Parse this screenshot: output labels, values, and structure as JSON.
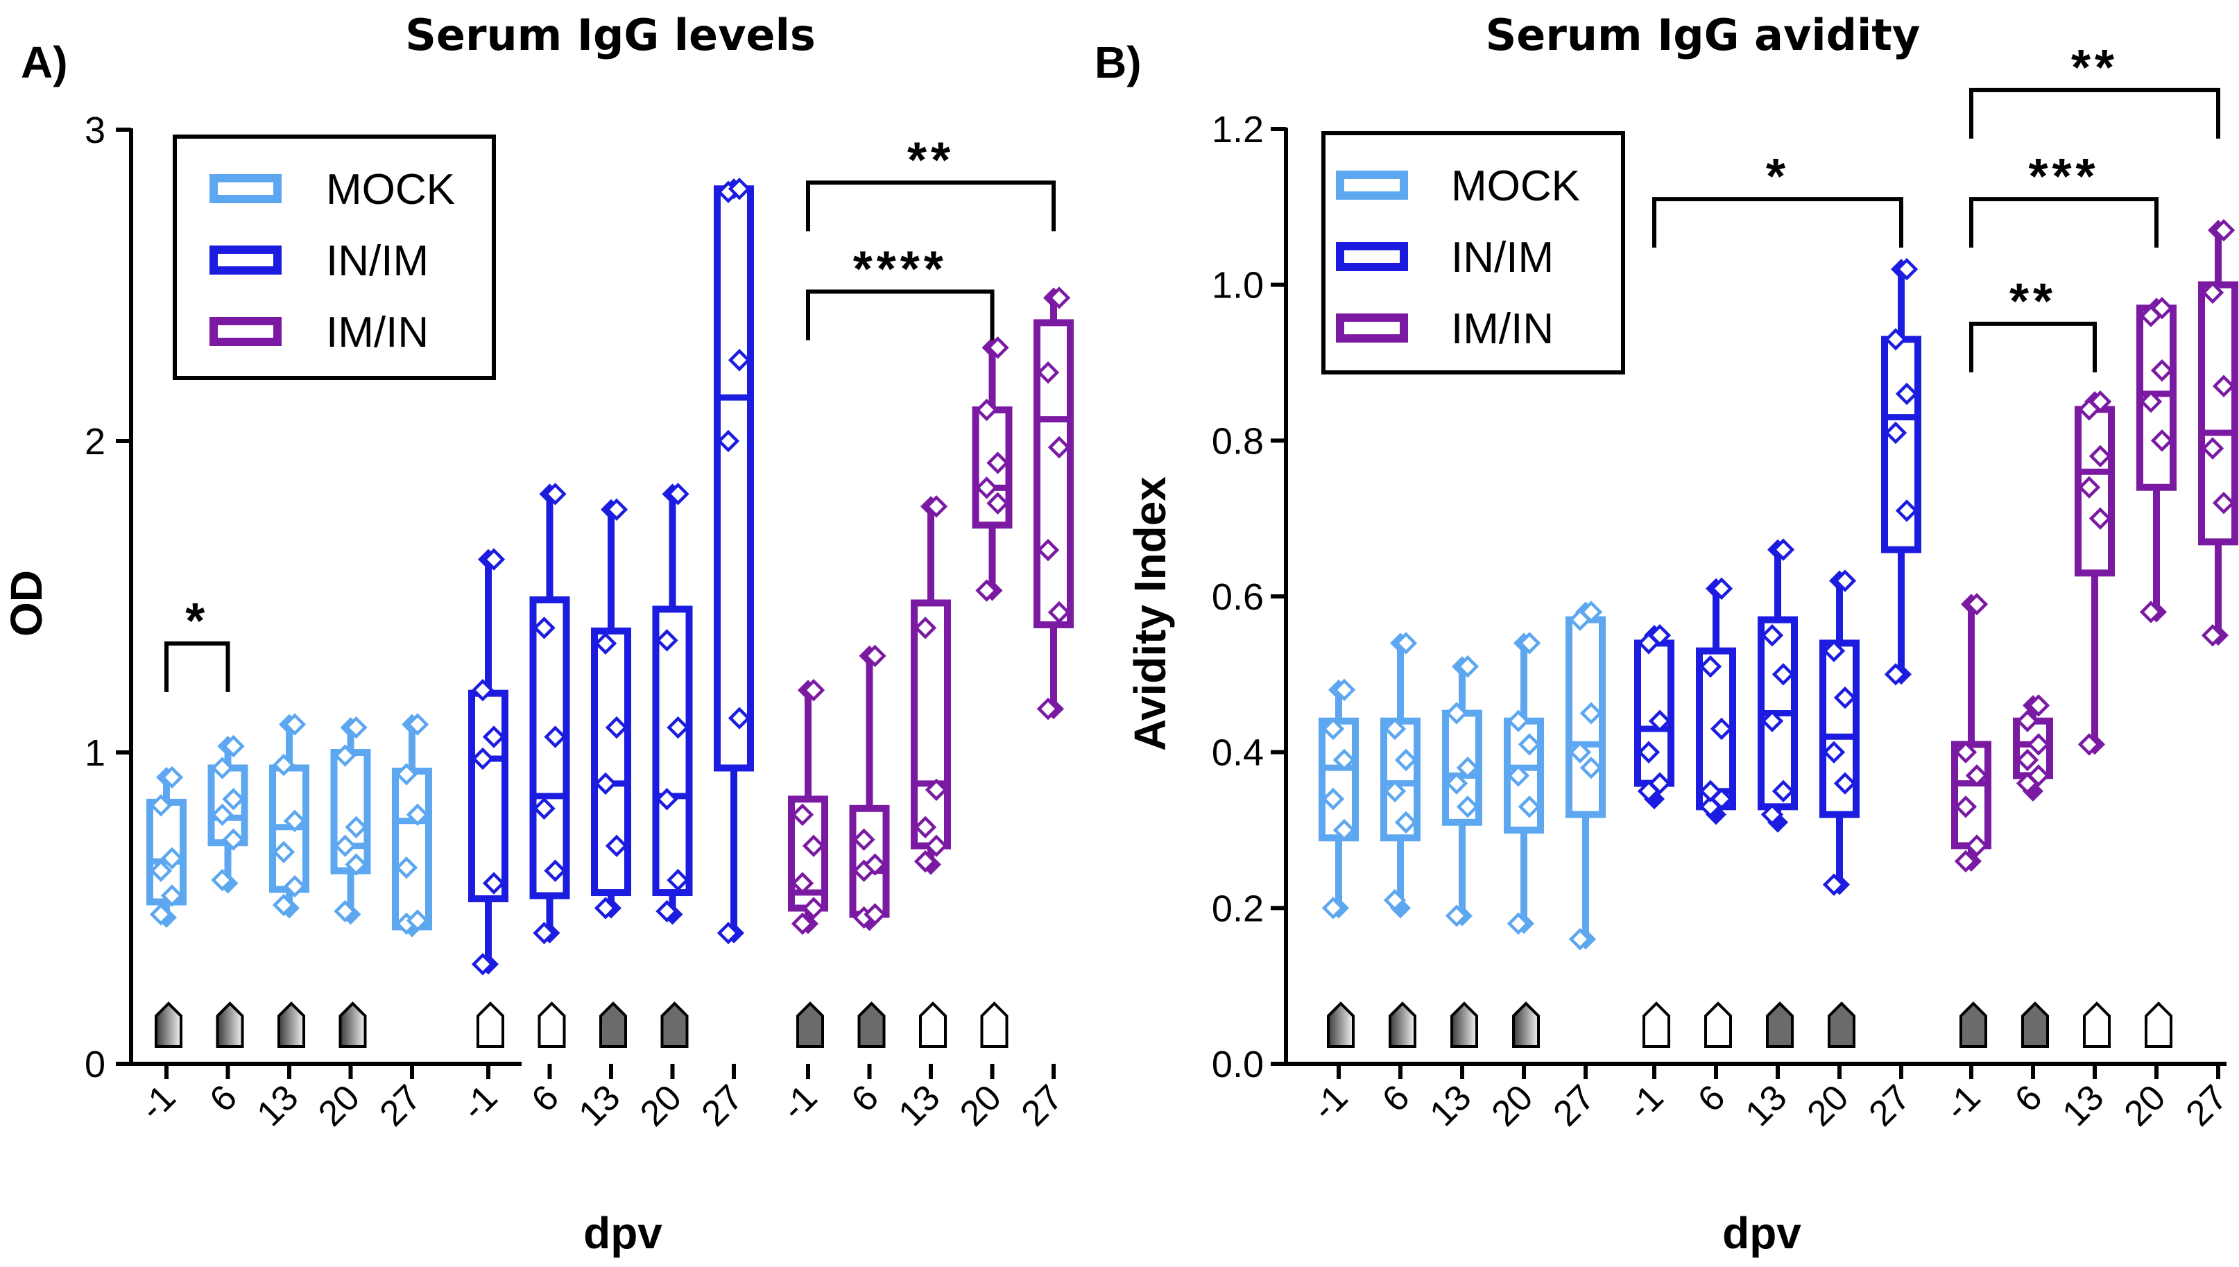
{
  "colors": {
    "MOCK": "#5ca7f0",
    "IN/IM": "#1b1ce0",
    "IM/IN": "#7a1aa3"
  },
  "chart_data": [
    {
      "type": "box",
      "panel_label": "A)",
      "title": "Serum IgG levels",
      "ylabel": "OD",
      "xlabel": "dpv",
      "ylim": [
        0,
        3
      ],
      "yticks": [
        "0",
        "1",
        "2",
        "3"
      ],
      "x": [
        "-1",
        "6",
        "13",
        "20",
        "27"
      ],
      "legend": [
        "MOCK",
        "IN/IM",
        "IM/IN"
      ],
      "series": [
        {
          "name": "MOCK",
          "boxes": [
            {
              "min": 0.47,
              "q1": 0.52,
              "median": 0.65,
              "q3": 0.84,
              "max": 0.92,
              "points": [
                0.48,
                0.54,
                0.62,
                0.66,
                0.83,
                0.92
              ]
            },
            {
              "min": 0.58,
              "q1": 0.71,
              "median": 0.79,
              "q3": 0.95,
              "max": 1.02,
              "points": [
                0.59,
                0.72,
                0.8,
                0.85,
                0.95,
                1.02
              ]
            },
            {
              "min": 0.5,
              "q1": 0.56,
              "median": 0.76,
              "q3": 0.95,
              "max": 1.09,
              "points": [
                0.51,
                0.57,
                0.68,
                0.78,
                0.96,
                1.09
              ]
            },
            {
              "min": 0.48,
              "q1": 0.62,
              "median": 0.7,
              "q3": 1.0,
              "max": 1.08,
              "points": [
                0.49,
                0.64,
                0.7,
                0.76,
                0.99,
                1.08
              ]
            },
            {
              "min": 0.44,
              "q1": 0.44,
              "median": 0.78,
              "q3": 0.94,
              "max": 1.09,
              "points": [
                0.45,
                0.46,
                0.63,
                0.8,
                0.93,
                1.09
              ]
            }
          ]
        },
        {
          "name": "IN/IM",
          "boxes": [
            {
              "min": 0.32,
              "q1": 0.53,
              "median": 0.98,
              "q3": 1.19,
              "max": 1.62,
              "points": [
                0.32,
                0.58,
                0.98,
                1.05,
                1.2,
                1.62
              ]
            },
            {
              "min": 0.42,
              "q1": 0.54,
              "median": 0.86,
              "q3": 1.49,
              "max": 1.83,
              "points": [
                0.42,
                0.62,
                0.82,
                1.05,
                1.4,
                1.83
              ]
            },
            {
              "min": 0.5,
              "q1": 0.55,
              "median": 0.9,
              "q3": 1.39,
              "max": 1.78,
              "points": [
                0.5,
                0.7,
                0.9,
                1.08,
                1.35,
                1.78
              ]
            },
            {
              "min": 0.48,
              "q1": 0.55,
              "median": 0.86,
              "q3": 1.46,
              "max": 1.83,
              "points": [
                0.49,
                0.59,
                0.85,
                1.08,
                1.36,
                1.83
              ]
            },
            {
              "min": 0.42,
              "q1": 0.95,
              "median": 2.14,
              "q3": 2.81,
              "max": 2.81,
              "points": [
                0.42,
                1.11,
                2.0,
                2.26,
                2.8,
                2.81
              ]
            }
          ]
        },
        {
          "name": "IM/IN",
          "boxes": [
            {
              "min": 0.45,
              "q1": 0.5,
              "median": 0.55,
              "q3": 0.85,
              "max": 1.2,
              "points": [
                0.45,
                0.5,
                0.58,
                0.7,
                0.8,
                1.2
              ]
            },
            {
              "min": 0.46,
              "q1": 0.48,
              "median": 0.62,
              "q3": 0.82,
              "max": 1.31,
              "points": [
                0.47,
                0.48,
                0.62,
                0.64,
                0.72,
                1.31
              ]
            },
            {
              "min": 0.64,
              "q1": 0.7,
              "median": 0.9,
              "q3": 1.48,
              "max": 1.79,
              "points": [
                0.65,
                0.7,
                0.76,
                0.88,
                1.4,
                1.79
              ]
            },
            {
              "min": 1.52,
              "q1": 1.73,
              "median": 1.85,
              "q3": 2.1,
              "max": 2.3,
              "points": [
                1.52,
                1.8,
                1.85,
                1.93,
                2.1,
                2.3
              ]
            },
            {
              "min": 1.14,
              "q1": 1.41,
              "median": 2.07,
              "q3": 2.38,
              "max": 2.46,
              "points": [
                1.14,
                1.45,
                1.65,
                1.98,
                2.22,
                2.46
              ]
            }
          ]
        }
      ],
      "significance": [
        {
          "label": "*",
          "series": "MOCK",
          "from": "-1",
          "to": "6",
          "level": 1.35
        },
        {
          "label": "****",
          "series": "IM/IN",
          "from": "-1",
          "to": "20",
          "level": 2.48
        },
        {
          "label": "**",
          "series": "IM/IN",
          "from": "-1",
          "to": "27",
          "level": 2.83
        }
      ],
      "markers": [
        [
          "gradient",
          "gradient",
          "gradient",
          "gradient"
        ],
        [
          "white",
          "white",
          "gray",
          "gray"
        ],
        [
          "gray",
          "gray",
          "white",
          "white"
        ]
      ]
    },
    {
      "type": "box",
      "panel_label": "B)",
      "title": "Serum IgG avidity",
      "ylabel": "Avidity Index",
      "xlabel": "dpv",
      "ylim": [
        0,
        1.2
      ],
      "yticks": [
        "0.0",
        "0.2",
        "0.4",
        "0.6",
        "0.8",
        "1.0",
        "1.2"
      ],
      "x": [
        "-1",
        "6",
        "13",
        "20",
        "27"
      ],
      "legend": [
        "MOCK",
        "IN/IM",
        "IM/IN"
      ],
      "series": [
        {
          "name": "MOCK",
          "boxes": [
            {
              "min": 0.2,
              "q1": 0.29,
              "median": 0.38,
              "q3": 0.44,
              "max": 0.48,
              "points": [
                0.2,
                0.3,
                0.34,
                0.39,
                0.43,
                0.48
              ]
            },
            {
              "min": 0.2,
              "q1": 0.29,
              "median": 0.36,
              "q3": 0.44,
              "max": 0.54,
              "points": [
                0.21,
                0.31,
                0.35,
                0.39,
                0.43,
                0.54
              ]
            },
            {
              "min": 0.19,
              "q1": 0.31,
              "median": 0.37,
              "q3": 0.45,
              "max": 0.51,
              "points": [
                0.19,
                0.33,
                0.36,
                0.38,
                0.45,
                0.51
              ]
            },
            {
              "min": 0.18,
              "q1": 0.3,
              "median": 0.38,
              "q3": 0.44,
              "max": 0.54,
              "points": [
                0.18,
                0.33,
                0.37,
                0.41,
                0.44,
                0.54
              ]
            },
            {
              "min": 0.16,
              "q1": 0.32,
              "median": 0.41,
              "q3": 0.57,
              "max": 0.58,
              "points": [
                0.16,
                0.38,
                0.4,
                0.45,
                0.57,
                0.58
              ]
            }
          ]
        },
        {
          "name": "IN/IM",
          "boxes": [
            {
              "min": 0.34,
              "q1": 0.36,
              "median": 0.43,
              "q3": 0.54,
              "max": 0.55,
              "points": [
                0.35,
                0.36,
                0.4,
                0.44,
                0.54,
                0.55
              ]
            },
            {
              "min": 0.32,
              "q1": 0.33,
              "median": 0.35,
              "q3": 0.53,
              "max": 0.61,
              "points": [
                0.33,
                0.34,
                0.35,
                0.43,
                0.51,
                0.61
              ]
            },
            {
              "min": 0.31,
              "q1": 0.33,
              "median": 0.45,
              "q3": 0.57,
              "max": 0.66,
              "points": [
                0.32,
                0.35,
                0.44,
                0.5,
                0.55,
                0.66
              ]
            },
            {
              "min": 0.23,
              "q1": 0.32,
              "median": 0.42,
              "q3": 0.54,
              "max": 0.62,
              "points": [
                0.23,
                0.36,
                0.4,
                0.47,
                0.53,
                0.62
              ]
            },
            {
              "min": 0.5,
              "q1": 0.66,
              "median": 0.83,
              "q3": 0.93,
              "max": 1.02,
              "points": [
                0.5,
                0.71,
                0.81,
                0.86,
                0.93,
                1.02
              ]
            }
          ]
        },
        {
          "name": "IM/IN",
          "boxes": [
            {
              "min": 0.26,
              "q1": 0.28,
              "median": 0.36,
              "q3": 0.41,
              "max": 0.59,
              "points": [
                0.26,
                0.28,
                0.33,
                0.37,
                0.4,
                0.59
              ]
            },
            {
              "min": 0.35,
              "q1": 0.37,
              "median": 0.41,
              "q3": 0.44,
              "max": 0.46,
              "points": [
                0.36,
                0.37,
                0.39,
                0.41,
                0.44,
                0.46
              ]
            },
            {
              "min": 0.41,
              "q1": 0.63,
              "median": 0.76,
              "q3": 0.84,
              "max": 0.85,
              "points": [
                0.41,
                0.7,
                0.74,
                0.78,
                0.84,
                0.85
              ]
            },
            {
              "min": 0.58,
              "q1": 0.74,
              "median": 0.86,
              "q3": 0.97,
              "max": 0.97,
              "points": [
                0.58,
                0.8,
                0.85,
                0.89,
                0.96,
                0.97
              ]
            },
            {
              "min": 0.55,
              "q1": 0.67,
              "median": 0.81,
              "q3": 1.0,
              "max": 1.07,
              "points": [
                0.55,
                0.72,
                0.79,
                0.87,
                0.99,
                1.07
              ]
            }
          ]
        }
      ],
      "significance": [
        {
          "label": "*",
          "series": "IN/IM",
          "from": "-1",
          "to": "27",
          "level": 1.11
        },
        {
          "label": "**",
          "series": "IM/IN",
          "from": "-1",
          "to": "13",
          "level": 0.95
        },
        {
          "label": "***",
          "series": "IM/IN",
          "from": "-1",
          "to": "20",
          "level": 1.11
        },
        {
          "label": "**",
          "series": "IM/IN",
          "from": "-1",
          "to": "27",
          "level": 1.25
        }
      ],
      "markers": [
        [
          "gradient",
          "gradient",
          "gradient",
          "gradient"
        ],
        [
          "white",
          "white",
          "gray",
          "gray"
        ],
        [
          "gray",
          "gray",
          "white",
          "white"
        ]
      ]
    }
  ]
}
